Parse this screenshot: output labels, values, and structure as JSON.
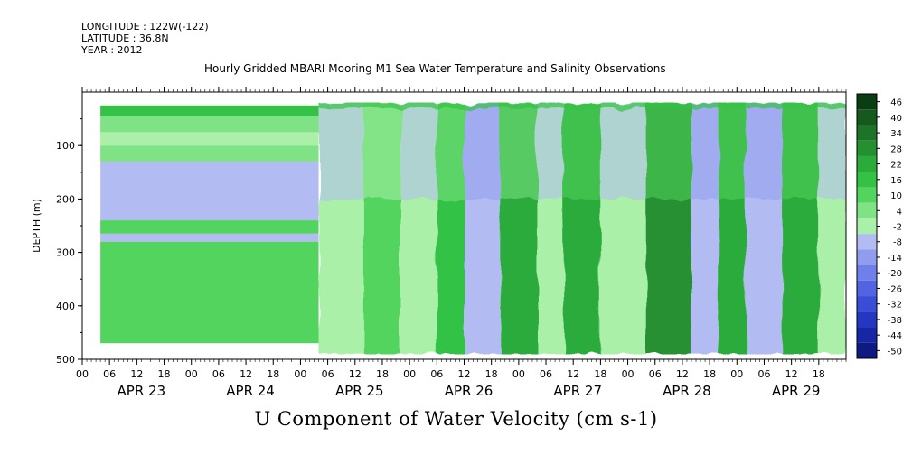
{
  "header": {
    "longitude": "LONGITUDE : 122W(-122)",
    "latitude": "LATITUDE : 36.8N",
    "year": "YEAR : 2012"
  },
  "chart_data": {
    "type": "heatmap",
    "title": "Hourly Gridded MBARI Mooring M1 Sea Water Temperature and Salinity Observations",
    "xlabel": "U Component of Water Velocity (cm s-1)",
    "ylabel": "DEPTH (m)",
    "ylim": [
      500,
      0
    ],
    "y_ticks": [
      100,
      200,
      300,
      400,
      500
    ],
    "x_range_hours": [
      0,
      168
    ],
    "x_hour_ticks": [
      "00",
      "06",
      "12",
      "18",
      "00",
      "06",
      "12",
      "18",
      "00",
      "06",
      "12",
      "18",
      "00",
      "06",
      "12",
      "18",
      "00",
      "06",
      "12",
      "18",
      "00",
      "06",
      "12",
      "18",
      "00",
      "06",
      "12",
      "18"
    ],
    "x_day_labels": [
      "APR 23",
      "APR 24",
      "APR 25",
      "APR 26",
      "APR 27",
      "APR 28",
      "APR 29"
    ],
    "colorbar": {
      "levels": [
        46,
        40,
        34,
        28,
        22,
        16,
        10,
        4,
        -2,
        -8,
        -14,
        -20,
        -26,
        -32,
        -38,
        -44,
        -50
      ],
      "colors": [
        "#0b3d12",
        "#15591c",
        "#1e7426",
        "#259030",
        "#2bab3a",
        "#33c244",
        "#52d45e",
        "#7fe385",
        "#aaf0a8",
        "#b3bcf2",
        "#8f9cef",
        "#6f80ea",
        "#5264e2",
        "#3a4dd6",
        "#2537c2",
        "#1726a5",
        "#0d1a80"
      ]
    },
    "series": [
      {
        "period": "APR 23 04:00 - APR 25 04:00",
        "note": "horizontal banding (sparse data)",
        "bands": [
          {
            "depth": [
              25,
              45
            ],
            "value": 12
          },
          {
            "depth": [
              45,
              75
            ],
            "value": 3
          },
          {
            "depth": [
              75,
              100
            ],
            "value": -4
          },
          {
            "depth": [
              100,
              130
            ],
            "value": 2
          },
          {
            "depth": [
              130,
              240
            ],
            "value": -9
          },
          {
            "depth": [
              240,
              265
            ],
            "value": 5
          },
          {
            "depth": [
              265,
              280
            ],
            "value": -12
          },
          {
            "depth": [
              280,
              470
            ],
            "value": 4
          }
        ]
      },
      {
        "period": "APR 25 04:00 - APR 29 22:00",
        "note": "alternating positive/negative velocity columns",
        "columns": [
          {
            "day_hour": [
              52,
              62
            ],
            "value": -8
          },
          {
            "day_hour": [
              62,
              70
            ],
            "value": 8
          },
          {
            "day_hour": [
              70,
              78
            ],
            "value": -6
          },
          {
            "day_hour": [
              78,
              84
            ],
            "value": 14
          },
          {
            "day_hour": [
              84,
              92
            ],
            "value": -10
          },
          {
            "day_hour": [
              92,
              100
            ],
            "value": 16
          },
          {
            "day_hour": [
              100,
              106
            ],
            "value": -4
          },
          {
            "day_hour": [
              106,
              114
            ],
            "value": 18
          },
          {
            "day_hour": [
              114,
              124
            ],
            "value": -8
          },
          {
            "day_hour": [
              124,
              134
            ],
            "value": 22
          },
          {
            "day_hour": [
              134,
              140
            ],
            "value": -12
          },
          {
            "day_hour": [
              140,
              146
            ],
            "value": 20
          },
          {
            "day_hour": [
              146,
              154
            ],
            "value": -14
          },
          {
            "day_hour": [
              154,
              162
            ],
            "value": 18
          },
          {
            "day_hour": [
              162,
              168
            ],
            "value": -6
          }
        ]
      }
    ]
  }
}
